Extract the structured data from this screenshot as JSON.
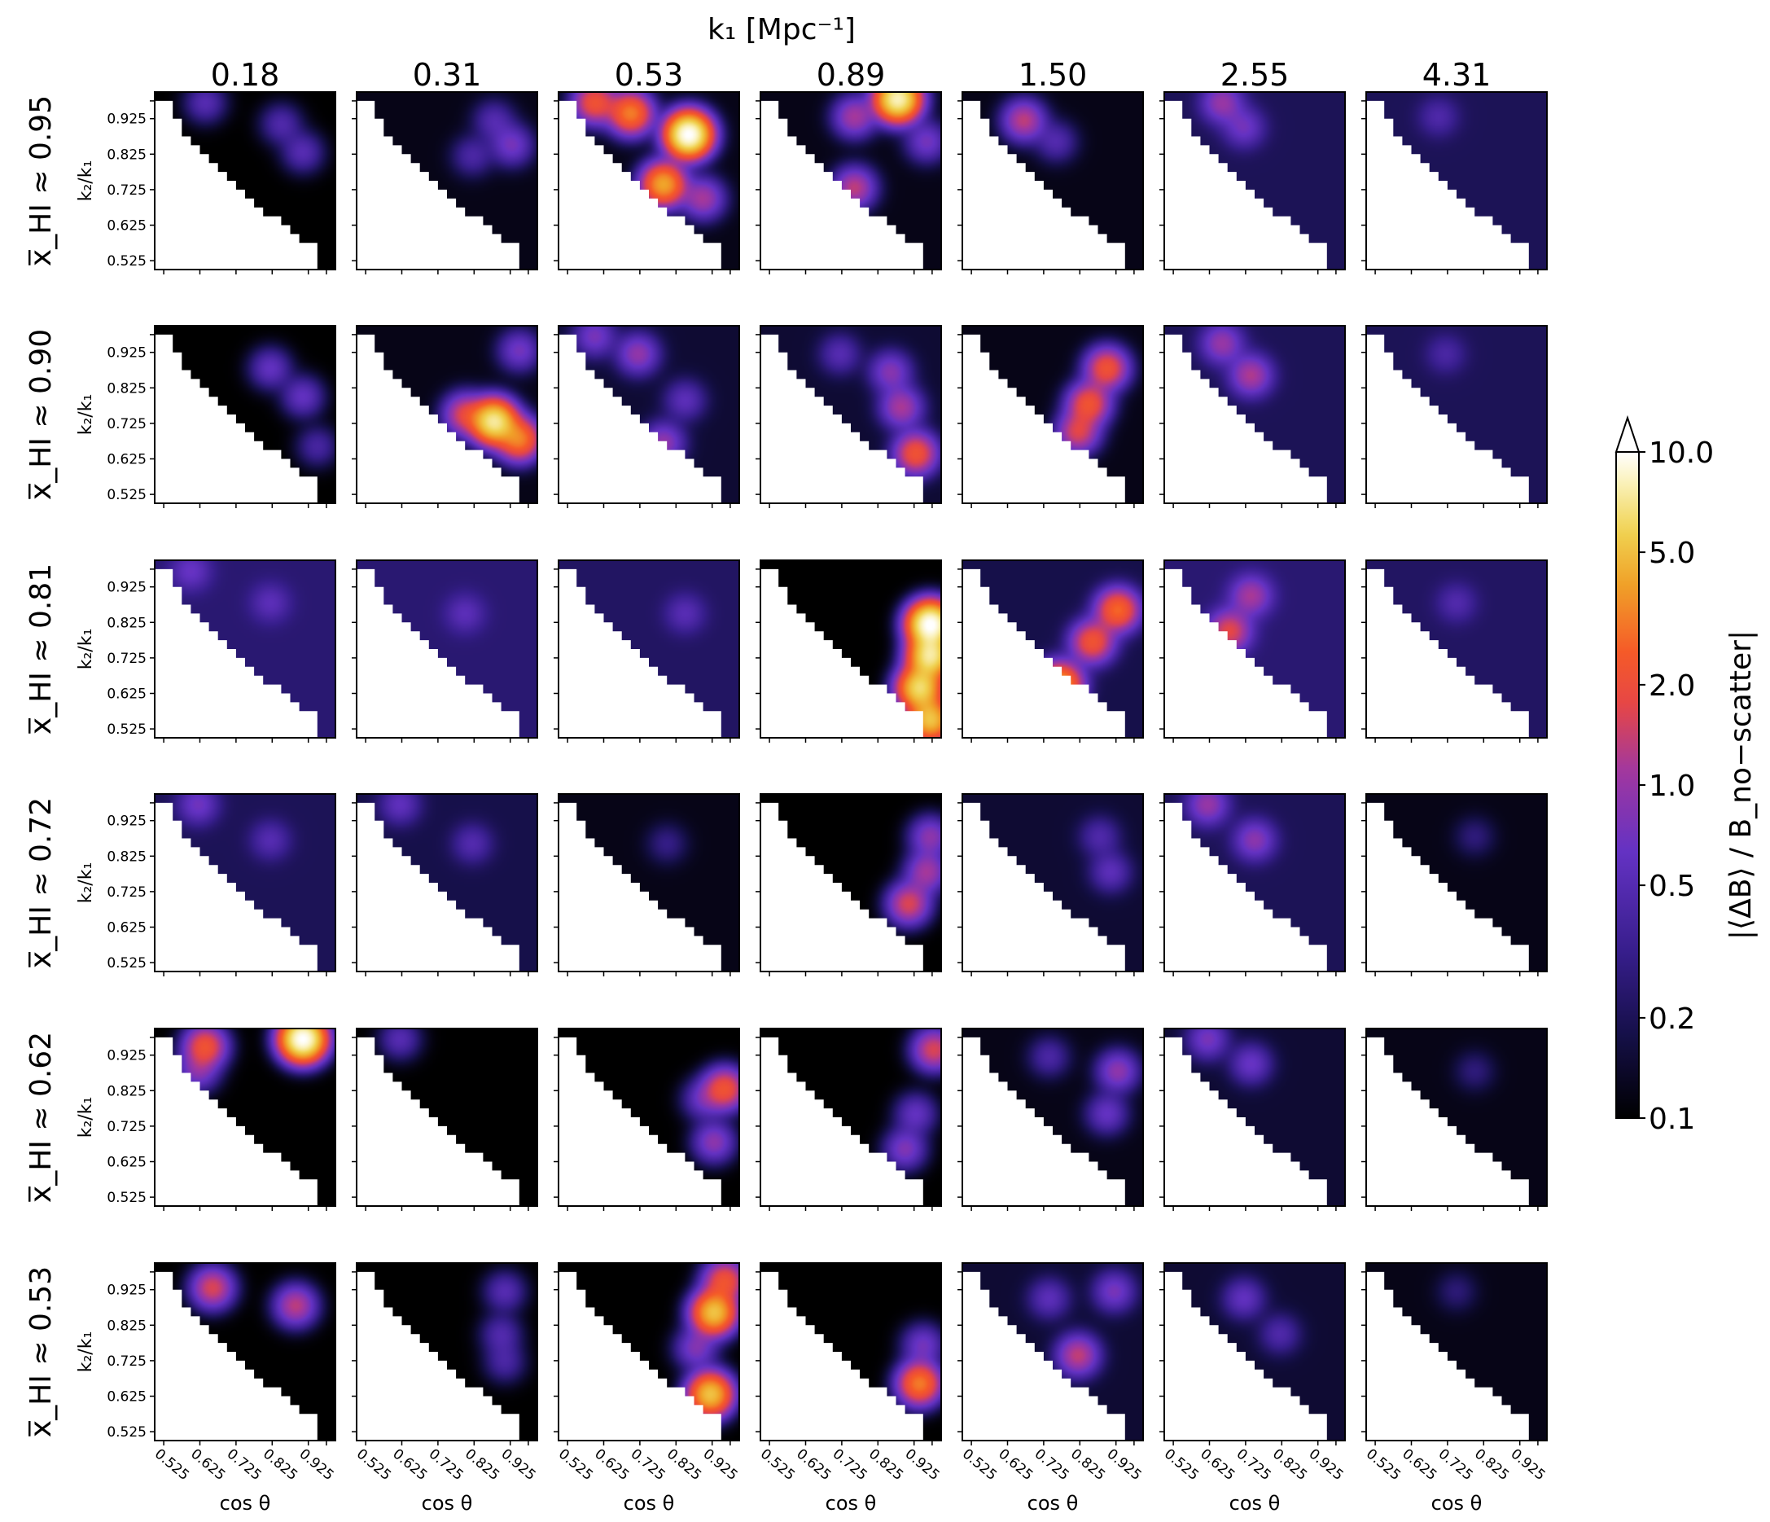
{
  "figure": {
    "top_title": "k₁ [Mpc⁻¹]",
    "colorbar_label": "|⟨ΔB⟩ / B_no−scatter|"
  },
  "chart_data": {
    "type": "heatmap",
    "xlabel": "cos θ",
    "ylabel": "k₂/k₁",
    "column_labels": [
      "0.18",
      "0.31",
      "0.53",
      "0.89",
      "1.50",
      "2.55",
      "4.31"
    ],
    "row_labels": [
      "x̅_HI ≈ 0.95",
      "x̅_HI ≈ 0.90",
      "x̅_HI ≈ 0.81",
      "x̅_HI ≈ 0.72",
      "x̅_HI ≈ 0.62",
      "x̅_HI ≈ 0.53"
    ],
    "x_ticks": [
      "0.525",
      "0.625",
      "0.725",
      "0.825",
      "0.925"
    ],
    "y_ticks": [
      "0.925",
      "0.825",
      "0.725",
      "0.625",
      "0.525"
    ],
    "xlim": [
      0.5,
      1.0
    ],
    "ylim": [
      0.5,
      1.0
    ],
    "colorbar": {
      "scale": "log",
      "range": [
        0.1,
        10.0
      ],
      "ticks": [
        "10.0",
        "5.0",
        "2.0",
        "1.0",
        "0.5",
        "0.2",
        "0.1"
      ],
      "tick_values": [
        10.0,
        5.0,
        2.0,
        1.0,
        0.5,
        0.2,
        0.1
      ],
      "colormap": "CMRmap-like (black → indigo → purple → red → orange → yellow → white)",
      "extend": "max"
    },
    "panels_note": "Lower-left triangle (k2/k1 + cosθ below threshold) is masked (white).",
    "panels": [
      [
        {
          "base": 0.1,
          "blobs": [
            [
              0.91,
              0.83,
              0.4
            ],
            [
              0.85,
              0.91,
              0.35
            ],
            [
              0.64,
              0.97,
              0.4
            ]
          ]
        },
        {
          "base": 0.12,
          "blobs": [
            [
              0.93,
              0.85,
              0.6
            ],
            [
              0.88,
              0.92,
              0.35
            ],
            [
              0.82,
              0.82,
              0.3
            ]
          ]
        },
        {
          "base": 0.12,
          "blobs": [
            [
              0.86,
              0.88,
              10.0
            ],
            [
              0.79,
              0.74,
              4.0
            ],
            [
              0.7,
              0.94,
              3.0
            ],
            [
              0.9,
              0.7,
              1.0
            ],
            [
              0.6,
              0.97,
              2.0
            ]
          ]
        },
        {
          "base": 0.12,
          "blobs": [
            [
              0.88,
              0.98,
              8.0
            ],
            [
              0.76,
              0.93,
              1.0
            ],
            [
              0.96,
              0.86,
              0.6
            ],
            [
              0.76,
              0.73,
              1.2
            ]
          ]
        },
        {
          "base": 0.12,
          "blobs": [
            [
              0.67,
              0.92,
              1.2
            ],
            [
              0.76,
              0.86,
              0.35
            ]
          ]
        },
        {
          "base": 0.2,
          "blobs": [
            [
              0.66,
              0.97,
              0.8
            ],
            [
              0.72,
              0.9,
              0.5
            ]
          ]
        },
        {
          "base": 0.2,
          "blobs": [
            [
              0.7,
              0.93,
              0.25
            ]
          ]
        }
      ],
      [
        {
          "base": 0.1,
          "blobs": [
            [
              0.82,
              0.88,
              0.5
            ],
            [
              0.91,
              0.8,
              0.5
            ],
            [
              0.95,
              0.66,
              0.3
            ]
          ]
        },
        {
          "base": 0.12,
          "blobs": [
            [
              0.88,
              0.73,
              7.0
            ],
            [
              0.8,
              0.75,
              1.5
            ],
            [
              0.95,
              0.68,
              3.0
            ],
            [
              0.95,
              0.93,
              0.6
            ]
          ]
        },
        {
          "base": 0.15,
          "blobs": [
            [
              0.72,
              0.92,
              0.8
            ],
            [
              0.85,
              0.79,
              0.4
            ],
            [
              0.79,
              0.67,
              0.8
            ],
            [
              0.6,
              0.97,
              0.6
            ]
          ]
        },
        {
          "base": 0.15,
          "blobs": [
            [
              0.86,
              0.87,
              0.7
            ],
            [
              0.89,
              0.77,
              1.0
            ],
            [
              0.93,
              0.64,
              2.0
            ],
            [
              0.72,
              0.92,
              0.35
            ]
          ]
        },
        {
          "base": 0.12,
          "blobs": [
            [
              0.9,
              0.88,
              2.0
            ],
            [
              0.85,
              0.78,
              2.0
            ],
            [
              0.82,
              0.7,
              1.5
            ]
          ]
        },
        {
          "base": 0.2,
          "blobs": [
            [
              0.66,
              0.95,
              0.8
            ],
            [
              0.74,
              0.86,
              1.0
            ]
          ]
        },
        {
          "base": 0.2,
          "blobs": [
            [
              0.72,
              0.92,
              0.22
            ]
          ]
        }
      ],
      [
        {
          "base": 0.25,
          "blobs": [
            [
              0.82,
              0.88,
              0.3
            ],
            [
              0.6,
              0.97,
              0.4
            ]
          ]
        },
        {
          "base": 0.25,
          "blobs": [
            [
              0.8,
              0.85,
              0.3
            ]
          ]
        },
        {
          "base": 0.22,
          "blobs": [
            [
              0.85,
              0.85,
              0.3
            ]
          ]
        },
        {
          "base": 0.1,
          "blobs": [
            [
              0.97,
              0.82,
              10.0
            ],
            [
              0.97,
              0.73,
              7.0
            ],
            [
              0.94,
              0.64,
              6.0
            ],
            [
              0.97,
              0.55,
              5.0
            ]
          ]
        },
        {
          "base": 0.18,
          "blobs": [
            [
              0.93,
              0.86,
              2.5
            ],
            [
              0.86,
              0.77,
              2.0
            ],
            [
              0.77,
              0.65,
              4.0
            ]
          ]
        },
        {
          "base": 0.25,
          "blobs": [
            [
              0.68,
              0.8,
              1.5
            ],
            [
              0.74,
              0.9,
              0.9
            ]
          ]
        },
        {
          "base": 0.22,
          "blobs": [
            [
              0.75,
              0.88,
              0.25
            ]
          ]
        }
      ],
      [
        {
          "base": 0.2,
          "blobs": [
            [
              0.82,
              0.87,
              0.3
            ],
            [
              0.62,
              0.97,
              0.5
            ]
          ]
        },
        {
          "base": 0.18,
          "blobs": [
            [
              0.82,
              0.86,
              0.3
            ],
            [
              0.62,
              0.97,
              0.4
            ]
          ]
        },
        {
          "base": 0.12,
          "blobs": [
            [
              0.8,
              0.86,
              0.18
            ]
          ]
        },
        {
          "base": 0.1,
          "blobs": [
            [
              0.97,
              0.88,
              0.8
            ],
            [
              0.96,
              0.78,
              1.0
            ],
            [
              0.91,
              0.69,
              1.5
            ]
          ]
        },
        {
          "base": 0.15,
          "blobs": [
            [
              0.91,
              0.78,
              0.4
            ],
            [
              0.88,
              0.88,
              0.3
            ]
          ]
        },
        {
          "base": 0.2,
          "blobs": [
            [
              0.62,
              0.97,
              0.8
            ],
            [
              0.75,
              0.87,
              0.7
            ]
          ]
        },
        {
          "base": 0.12,
          "blobs": [
            [
              0.8,
              0.88,
              0.15
            ]
          ]
        }
      ],
      [
        {
          "base": 0.1,
          "blobs": [
            [
              0.91,
              0.97,
              10.0
            ],
            [
              0.64,
              0.95,
              2.0
            ],
            [
              0.62,
              0.88,
              0.7
            ]
          ]
        },
        {
          "base": 0.1,
          "blobs": [
            [
              0.62,
              0.97,
              0.4
            ]
          ]
        },
        {
          "base": 0.1,
          "blobs": [
            [
              0.96,
              0.83,
              2.0
            ],
            [
              0.9,
              0.8,
              0.5
            ],
            [
              0.93,
              0.68,
              0.8
            ]
          ]
        },
        {
          "base": 0.1,
          "blobs": [
            [
              0.98,
              0.94,
              1.5
            ],
            [
              0.93,
              0.76,
              0.5
            ],
            [
              0.9,
              0.66,
              0.7
            ]
          ]
        },
        {
          "base": 0.12,
          "blobs": [
            [
              0.93,
              0.88,
              0.8
            ],
            [
              0.9,
              0.76,
              0.5
            ],
            [
              0.74,
              0.92,
              0.3
            ]
          ]
        },
        {
          "base": 0.15,
          "blobs": [
            [
              0.74,
              0.9,
              0.5
            ],
            [
              0.62,
              0.97,
              0.6
            ]
          ]
        },
        {
          "base": 0.12,
          "blobs": [
            [
              0.8,
              0.88,
              0.15
            ]
          ]
        }
      ],
      [
        {
          "base": 0.1,
          "blobs": [
            [
              0.89,
              0.88,
              1.2
            ],
            [
              0.66,
              0.93,
              1.5
            ]
          ]
        },
        {
          "base": 0.1,
          "blobs": [
            [
              0.91,
              0.92,
              0.4
            ],
            [
              0.9,
              0.8,
              0.35
            ],
            [
              0.91,
              0.72,
              0.3
            ]
          ]
        },
        {
          "base": 0.1,
          "blobs": [
            [
              0.93,
              0.86,
              5.0
            ],
            [
              0.96,
              0.95,
              2.0
            ],
            [
              0.92,
              0.63,
              5.0
            ],
            [
              0.88,
              0.76,
              0.7
            ]
          ]
        },
        {
          "base": 0.1,
          "blobs": [
            [
              0.94,
              0.66,
              3.0
            ],
            [
              0.95,
              0.77,
              0.6
            ]
          ]
        },
        {
          "base": 0.15,
          "blobs": [
            [
              0.92,
              0.92,
              0.6
            ],
            [
              0.82,
              0.74,
              1.2
            ],
            [
              0.74,
              0.9,
              0.4
            ]
          ]
        },
        {
          "base": 0.15,
          "blobs": [
            [
              0.72,
              0.9,
              0.45
            ],
            [
              0.82,
              0.8,
              0.3
            ]
          ]
        },
        {
          "base": 0.12,
          "blobs": [
            [
              0.75,
              0.92,
              0.14
            ]
          ]
        }
      ]
    ]
  }
}
